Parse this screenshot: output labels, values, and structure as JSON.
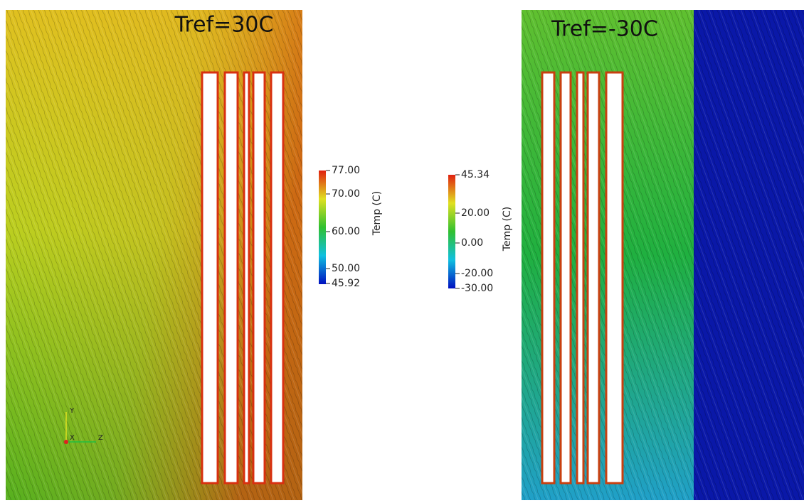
{
  "panels": [
    {
      "title": "Tref=30C",
      "colorbar": {
        "label": "Temp (C)",
        "ticks": [
          "77.00",
          "70.00",
          "60.00",
          "50.00",
          "45.92"
        ]
      },
      "axes": {
        "y": "Y",
        "x": "X",
        "z": "Z"
      }
    },
    {
      "title": "Tref=-30C",
      "colorbar": {
        "label": "Temp (C)",
        "ticks": [
          "45.34",
          "20.00",
          "0.00",
          "-20.00",
          "-30.00"
        ]
      }
    }
  ]
}
